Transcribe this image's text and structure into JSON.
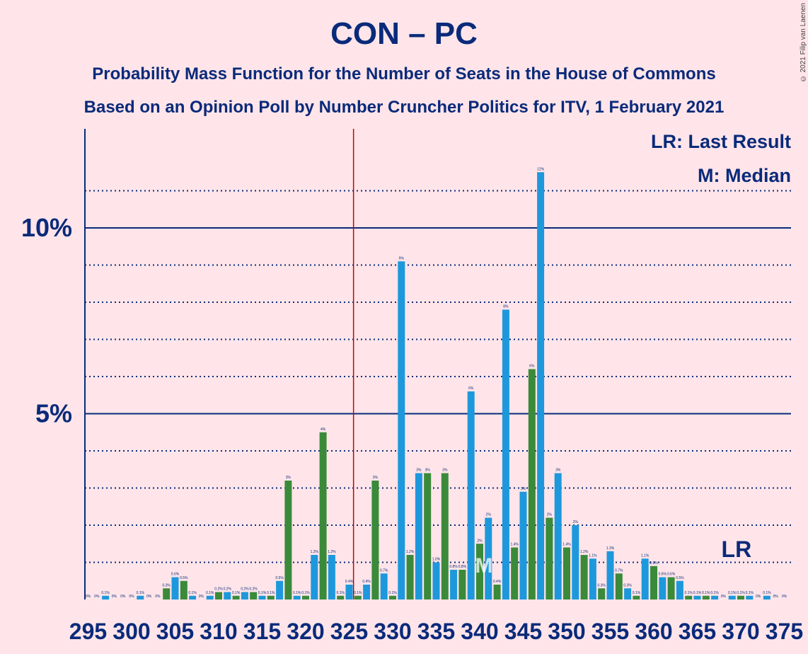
{
  "title": "CON – PC",
  "subtitle1": "Probability Mass Function for the Number of Seats in the House of Commons",
  "subtitle2": "Based on an Opinion Poll by Number Cruncher Politics for ITV, 1 February 2021",
  "copyright": "© 2021 Filip van Laenen",
  "colors": {
    "background": "#FFE5E9",
    "axis": "#0A2A7A",
    "green": "#3A8A3A",
    "blue": "#1E98DC",
    "redline": "#CC0000"
  },
  "chart_data": {
    "type": "bar",
    "x_start": 295,
    "x_end": 375,
    "xtick_labels": [
      "295",
      "300",
      "305",
      "310",
      "315",
      "320",
      "325",
      "330",
      "335",
      "340",
      "345",
      "350",
      "355",
      "360",
      "365",
      "370",
      "375"
    ],
    "ytick_labels": [
      {
        "value": 5,
        "label": "5%"
      },
      {
        "value": 10,
        "label": "10%"
      }
    ],
    "ylim": [
      0,
      12.5
    ],
    "grid": {
      "solid": [
        5,
        10
      ],
      "dotted": [
        1,
        2,
        3,
        4,
        6,
        7,
        8,
        9,
        11
      ]
    },
    "values": [
      0,
      0,
      0.1,
      0,
      0,
      0,
      0.1,
      0,
      0,
      0.3,
      0.6,
      0.5,
      0.1,
      0,
      0.1,
      0.2,
      0.2,
      0.1,
      0.2,
      0.2,
      0.1,
      0.1,
      0.5,
      3.2,
      0.1,
      0.1,
      1.2,
      4.5,
      1.2,
      0.1,
      0.4,
      0.1,
      0.4,
      3.2,
      0.7,
      0.1,
      9.1,
      1.2,
      3.4,
      3.4,
      1.0,
      3.4,
      0.8,
      0.8,
      5.6,
      1.5,
      2.2,
      0.4,
      7.8,
      1.4,
      2.9,
      6.2,
      11.5,
      2.2,
      3.4,
      1.4,
      2.0,
      1.2,
      1.1,
      0.3,
      1.3,
      0.7,
      0.3,
      0.1,
      1.1,
      0.9,
      0.6,
      0.6,
      0.5,
      0.1,
      0.1,
      0.1,
      0.1,
      0,
      0.1,
      0.1,
      0.1,
      0,
      0.1,
      0,
      0
    ],
    "value_labels": [
      "0%",
      "0%",
      "0.1%",
      "0%",
      "0%",
      "0%",
      "0.1%",
      "0%",
      "0%",
      "0.3%",
      "0.6%",
      "0.5%",
      "0.1%",
      "0%",
      "0.1%",
      "0.2%",
      "0.2%",
      "0.1%",
      "0.2%",
      "0.2%",
      "0.1%",
      "0.1%",
      "0.5%",
      "3%",
      "0.1%",
      "0.1%",
      "1.2%",
      "4%",
      "1.2%",
      "0.1%",
      "0.4%",
      "0.1%",
      "0.4%",
      "3%",
      "0.7%",
      "0.1%",
      "9%",
      "1.2%",
      "3%",
      "3%",
      "1.0%",
      "3%",
      "0.8%",
      "0.8%",
      "6%",
      "2%",
      "2%",
      "0.4%",
      "8%",
      "1.4%",
      "3%",
      "6%",
      "12%",
      "2%",
      "3%",
      "1.4%",
      "2%",
      "1.2%",
      "1.1%",
      "0.3%",
      "1.3%",
      "0.7%",
      "0.3%",
      "0.1%",
      "1.1%",
      "0.9%",
      "0.6%",
      "0.6%",
      "0.5%",
      "0.1%",
      "0.1%",
      "0.1%",
      "0.1%",
      "0%",
      "0.1%",
      "0.1%",
      "0.1%",
      "0%",
      "0.1%",
      "0%",
      "0%"
    ],
    "majority_line_x": 325.5,
    "median": {
      "x": 340,
      "label": "M"
    },
    "last_result": {
      "x": 369.5,
      "label": "LR"
    },
    "legend": [
      "LR: Last Result",
      "M: Median"
    ],
    "legend_position": "top-right"
  }
}
